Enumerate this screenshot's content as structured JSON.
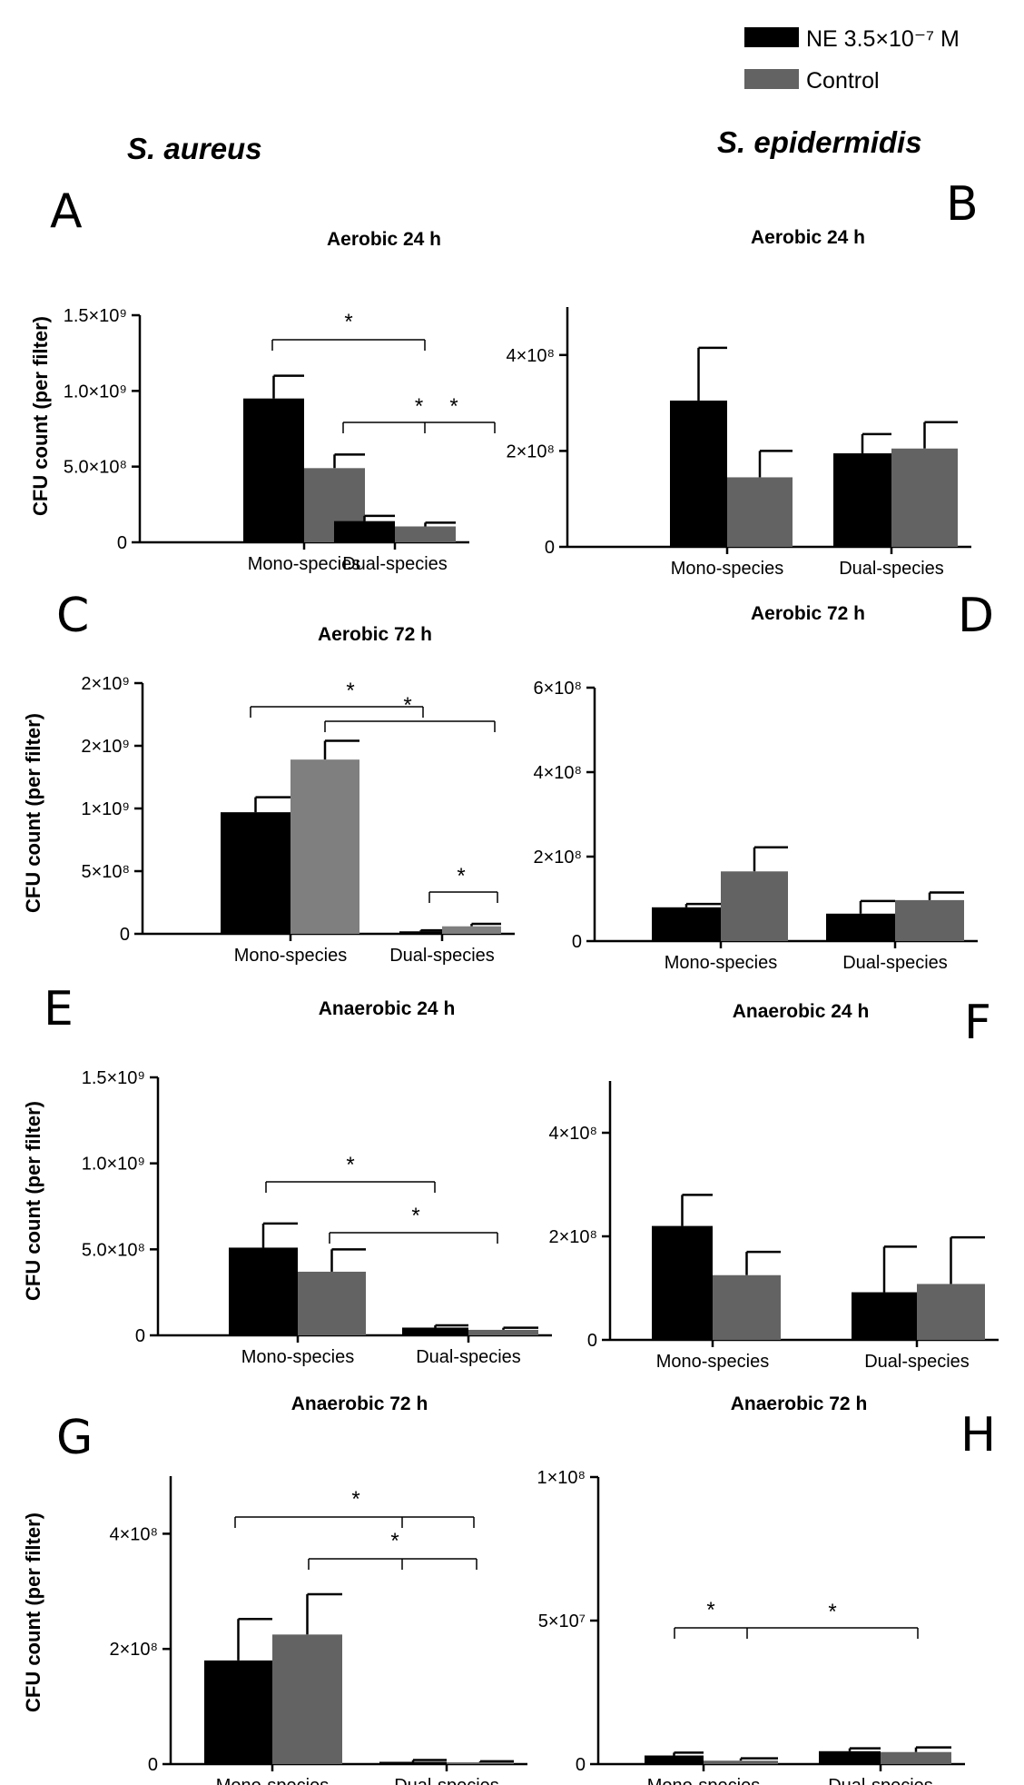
{
  "legend": {
    "items": [
      {
        "label": "NE 3.5×10⁻⁷ M",
        "color": "#000000"
      },
      {
        "label": "Control",
        "color": "#636363"
      }
    ]
  },
  "species_titles": {
    "left": "S. aureus",
    "right": "S. epidermidis"
  },
  "colors": {
    "ne": "#000000",
    "control": "#636363",
    "control_light": "#7f7f7f",
    "axis": "#000000"
  },
  "chart_data": [
    {
      "panel": "A",
      "title": "Aerobic 24 h",
      "type": "bar",
      "ylabel": "CFU count (per filter)",
      "categories": [
        "Mono-species",
        "Dual-species"
      ],
      "series": [
        {
          "name": "NE 3.5×10⁻⁷ M",
          "values": [
            950000000,
            140000000
          ],
          "errors": [
            150000000,
            35000000
          ]
        },
        {
          "name": "Control",
          "values": [
            490000000,
            105000000
          ],
          "errors": [
            90000000,
            25000000
          ]
        }
      ],
      "ylim": [
        0,
        1500000000
      ],
      "yticks": [
        {
          "value": 0,
          "label": "0"
        },
        {
          "value": 500000000,
          "label": "5.0×10⁸"
        },
        {
          "value": 1000000000,
          "label": "1.0×10⁹"
        },
        {
          "value": 1500000000,
          "label": "1.5×10⁹"
        }
      ],
      "significance": [
        "*",
        "*",
        "*"
      ]
    },
    {
      "panel": "B",
      "title": "Aerobic 24 h",
      "type": "bar",
      "ylabel": "",
      "categories": [
        "Mono-species",
        "Dual-species"
      ],
      "series": [
        {
          "name": "NE 3.5×10⁻⁷ M",
          "values": [
            305000000,
            195000000
          ],
          "errors": [
            110000000,
            40000000
          ]
        },
        {
          "name": "Control",
          "values": [
            145000000,
            205000000
          ],
          "errors": [
            55000000,
            55000000
          ]
        }
      ],
      "ylim": [
        0,
        500000000
      ],
      "yticks": [
        {
          "value": 0,
          "label": "0"
        },
        {
          "value": 200000000,
          "label": "2×10⁸"
        },
        {
          "value": 400000000,
          "label": "4×10⁸"
        }
      ],
      "significance": []
    },
    {
      "panel": "C",
      "title": "Aerobic 72 h",
      "type": "bar",
      "ylabel": "CFU count (per filter)",
      "categories": [
        "Mono-species",
        "Dual-species"
      ],
      "series": [
        {
          "name": "NE 3.5×10⁻⁷ M",
          "values": [
            970000000,
            20000000
          ],
          "errors": [
            120000000,
            8000000
          ]
        },
        {
          "name": "Control",
          "values": [
            1390000000,
            60000000
          ],
          "errors": [
            150000000,
            20000000
          ]
        }
      ],
      "ylim": [
        0,
        2000000000
      ],
      "yticks": [
        {
          "value": 0,
          "label": "0"
        },
        {
          "value": 500000000,
          "label": "5×10⁸"
        },
        {
          "value": 1000000000,
          "label": "1×10⁹"
        },
        {
          "value": 1500000000,
          "label": "2×10⁹"
        },
        {
          "value": 2000000000,
          "label": "2×10⁹"
        }
      ],
      "significance": [
        "*",
        "*",
        "*"
      ]
    },
    {
      "panel": "D",
      "title": "Aerobic 72 h",
      "type": "bar",
      "ylabel": "",
      "categories": [
        "Mono-species",
        "Dual-species"
      ],
      "series": [
        {
          "name": "NE 3.5×10⁻⁷ M",
          "values": [
            80000000,
            65000000
          ],
          "errors": [
            8000000,
            30000000
          ]
        },
        {
          "name": "Control",
          "values": [
            165000000,
            97000000
          ],
          "errors": [
            57000000,
            18000000
          ]
        }
      ],
      "ylim": [
        0,
        600000000
      ],
      "yticks": [
        {
          "value": 0,
          "label": "0"
        },
        {
          "value": 200000000,
          "label": "2×10⁸"
        },
        {
          "value": 400000000,
          "label": "4×10⁸"
        },
        {
          "value": 600000000,
          "label": "6×10⁸"
        }
      ],
      "significance": []
    },
    {
      "panel": "E",
      "title": "Anaerobic 24 h",
      "type": "bar",
      "ylabel": "CFU count (per filter)",
      "categories": [
        "Mono-species",
        "Dual-species"
      ],
      "series": [
        {
          "name": "NE 3.5×10⁻⁷ M",
          "values": [
            510000000,
            45000000
          ],
          "errors": [
            140000000,
            13000000
          ]
        },
        {
          "name": "Control",
          "values": [
            370000000,
            32000000
          ],
          "errors": [
            130000000,
            12000000
          ]
        }
      ],
      "ylim": [
        0,
        1500000000
      ],
      "yticks": [
        {
          "value": 0,
          "label": "0"
        },
        {
          "value": 500000000,
          "label": "5.0×10⁸"
        },
        {
          "value": 1000000000,
          "label": "1.0×10⁹"
        },
        {
          "value": 1500000000,
          "label": "1.5×10⁹"
        }
      ],
      "significance": [
        "*",
        "*"
      ]
    },
    {
      "panel": "F",
      "title": "Anaerobic 24 h",
      "type": "bar",
      "ylabel": "",
      "categories": [
        "Mono-species",
        "Dual-species"
      ],
      "series": [
        {
          "name": "NE 3.5×10⁻⁷ M",
          "values": [
            220000000,
            92000000
          ],
          "errors": [
            60000000,
            88000000
          ]
        },
        {
          "name": "Control",
          "values": [
            125000000,
            108000000
          ],
          "errors": [
            45000000,
            90000000
          ]
        }
      ],
      "ylim": [
        0,
        500000000
      ],
      "yticks": [
        {
          "value": 0,
          "label": "0"
        },
        {
          "value": 200000000,
          "label": "2×10⁸"
        },
        {
          "value": 400000000,
          "label": "4×10⁸"
        }
      ],
      "significance": []
    },
    {
      "panel": "G",
      "title": "Anaerobic 72 h",
      "type": "bar",
      "ylabel": "CFU count (per filter)",
      "categories": [
        "Mono-species",
        "Dual-species"
      ],
      "series": [
        {
          "name": "NE 3.5×10⁻⁷ M",
          "values": [
            180000000,
            4000000
          ],
          "errors": [
            72000000,
            3000000
          ]
        },
        {
          "name": "Control",
          "values": [
            225000000,
            3000000
          ],
          "errors": [
            70000000,
            2000000
          ]
        }
      ],
      "ylim": [
        0,
        500000000
      ],
      "yticks": [
        {
          "value": 0,
          "label": "0"
        },
        {
          "value": 200000000,
          "label": "2×10⁸"
        },
        {
          "value": 400000000,
          "label": "4×10⁸"
        }
      ],
      "significance": [
        "*",
        "*"
      ]
    },
    {
      "panel": "H",
      "title": "Anaerobic 72 h",
      "type": "bar",
      "ylabel": "",
      "categories": [
        "Mono-species",
        "Dual-species"
      ],
      "series": [
        {
          "name": "NE 3.5×10⁻⁷ M",
          "values": [
            3000000,
            4500000
          ],
          "errors": [
            1000000,
            1000000
          ]
        },
        {
          "name": "Control",
          "values": [
            1200000,
            4200000
          ],
          "errors": [
            800000,
            1600000
          ]
        }
      ],
      "ylim": [
        0,
        100000000
      ],
      "yticks": [
        {
          "value": 0,
          "label": "0"
        },
        {
          "value": 50000000,
          "label": "5×10⁷"
        },
        {
          "value": 100000000,
          "label": "1×10⁸"
        }
      ],
      "significance": [
        "*",
        "*"
      ]
    }
  ]
}
